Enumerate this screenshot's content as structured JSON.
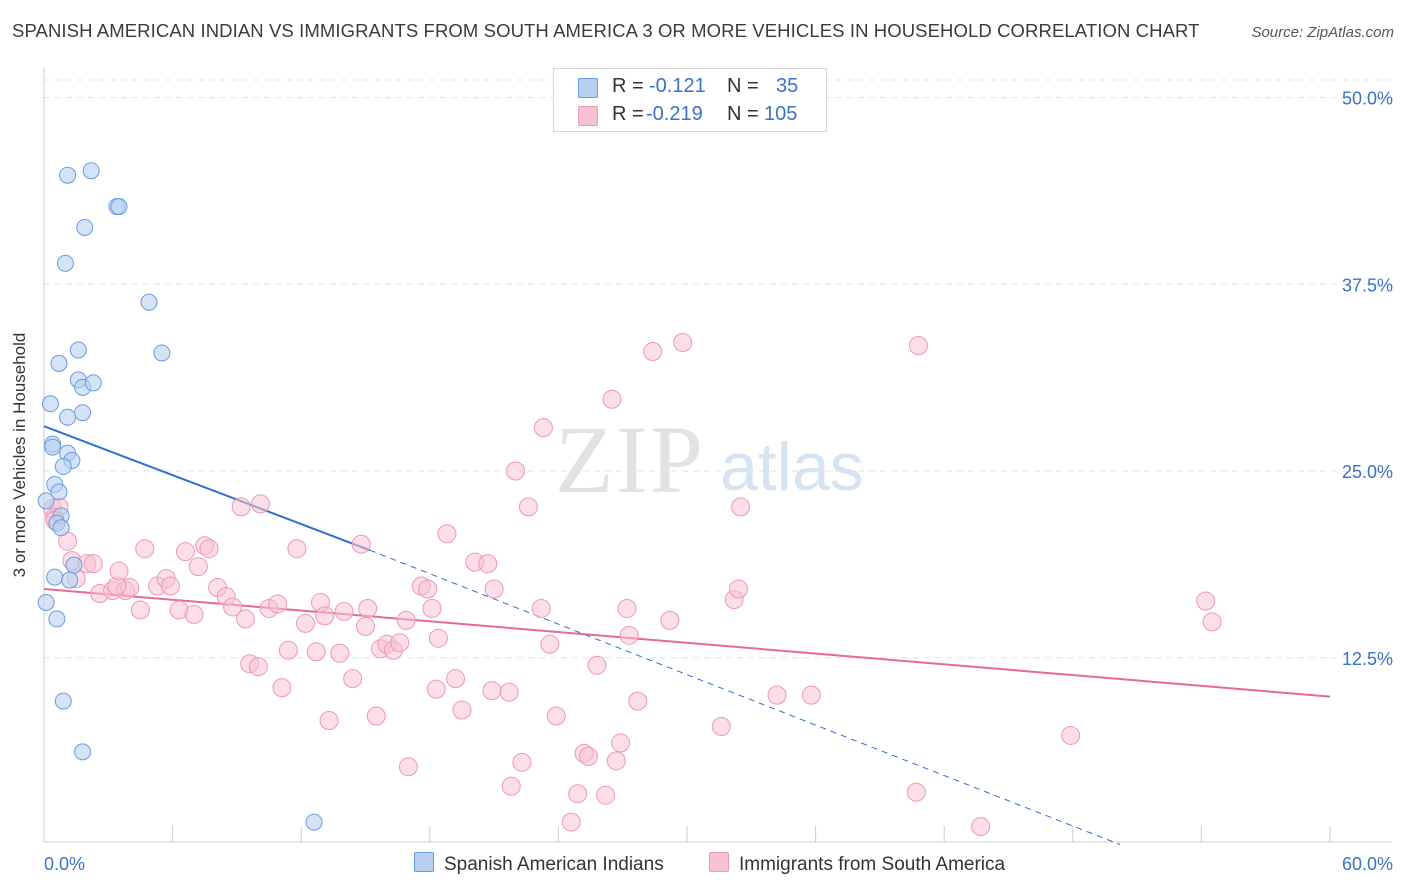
{
  "title": "SPANISH AMERICAN INDIAN VS IMMIGRANTS FROM SOUTH AMERICA 3 OR MORE VEHICLES IN HOUSEHOLD CORRELATION CHART",
  "source": "Source: ZipAtlas.com",
  "watermark": {
    "zip": "ZIP",
    "atlas": "atlas"
  },
  "legend_top": {
    "series1": {
      "r_label": "R =",
      "r_value": "-0.121",
      "n_label": "N =",
      "n_value": "35"
    },
    "series2": {
      "r_label": "R =",
      "r_value": "-0.219",
      "n_label": "N =",
      "n_value": "105"
    }
  },
  "legend_bottom": {
    "series1": "Spanish American Indians",
    "series2": "Immigrants from South America"
  },
  "colors": {
    "blue_fill": "#b8d0f0",
    "blue_stroke": "#6b9be0",
    "blue_line": "#2f6fce",
    "pink_fill": "#f7c3d3",
    "pink_stroke": "#ee98b4",
    "pink_line": "#e56a97",
    "axis_text": "#3a72c6",
    "grid": "#e3e3e3"
  },
  "chart_data": {
    "type": "scatter",
    "title": "SPANISH AMERICAN INDIAN VS IMMIGRANTS FROM SOUTH AMERICA 3 OR MORE VEHICLES IN HOUSEHOLD CORRELATION CHART",
    "xlabel": "",
    "ylabel": "3 or more Vehicles in Household",
    "xlim": [
      0,
      60
    ],
    "ylim": [
      0,
      50
    ],
    "x_tick_labels": [
      "0.0%",
      "60.0%"
    ],
    "y_ticks": [
      12.5,
      25.0,
      37.5,
      50.0
    ],
    "y_tick_labels": [
      "12.5%",
      "25.0%",
      "37.5%",
      "50.0%"
    ],
    "legend_position": "top-center",
    "series": [
      {
        "name": "Spanish American Indians",
        "r": -0.121,
        "n": 35,
        "points": [
          [
            1.1,
            44.8
          ],
          [
            2.2,
            45.1
          ],
          [
            3.4,
            42.7
          ],
          [
            3.5,
            42.7
          ],
          [
            1.9,
            41.3
          ],
          [
            1.0,
            38.9
          ],
          [
            4.9,
            36.3
          ],
          [
            5.5,
            32.9
          ],
          [
            1.6,
            33.1
          ],
          [
            0.7,
            32.2
          ],
          [
            1.6,
            31.1
          ],
          [
            1.8,
            30.6
          ],
          [
            2.3,
            30.9
          ],
          [
            0.3,
            29.5
          ],
          [
            1.1,
            28.6
          ],
          [
            1.8,
            28.9
          ],
          [
            0.4,
            26.8
          ],
          [
            0.4,
            26.6
          ],
          [
            1.1,
            26.2
          ],
          [
            1.3,
            25.7
          ],
          [
            0.9,
            25.3
          ],
          [
            0.5,
            24.1
          ],
          [
            0.7,
            23.6
          ],
          [
            0.1,
            23.0
          ],
          [
            0.8,
            22.0
          ],
          [
            0.6,
            21.5
          ],
          [
            0.8,
            21.2
          ],
          [
            1.4,
            18.7
          ],
          [
            0.5,
            17.9
          ],
          [
            1.2,
            17.7
          ],
          [
            0.1,
            16.2
          ],
          [
            0.6,
            15.1
          ],
          [
            0.9,
            9.6
          ],
          [
            1.8,
            6.2
          ],
          [
            12.6,
            1.5
          ]
        ],
        "trend": {
          "x1": 0,
          "y1": 28.0,
          "x2": 15.2,
          "y2": 19.7,
          "dashed_to_x": 50.2,
          "dashed_to_y": 0.0
        }
      },
      {
        "name": "Immigrants from South America",
        "r": -0.219,
        "n": 105,
        "points": [
          [
            0.4,
            22.5
          ],
          [
            0.7,
            22.6
          ],
          [
            0.5,
            21.9
          ],
          [
            0.5,
            21.7
          ],
          [
            1.1,
            20.3
          ],
          [
            1.3,
            19.0
          ],
          [
            2.0,
            18.8
          ],
          [
            1.5,
            17.8
          ],
          [
            2.3,
            18.8
          ],
          [
            2.6,
            16.8
          ],
          [
            3.2,
            17.0
          ],
          [
            3.8,
            17.0
          ],
          [
            4.0,
            17.2
          ],
          [
            3.4,
            17.3
          ],
          [
            4.5,
            15.7
          ],
          [
            4.7,
            19.8
          ],
          [
            3.5,
            18.3
          ],
          [
            5.3,
            17.3
          ],
          [
            5.7,
            17.8
          ],
          [
            5.9,
            17.3
          ],
          [
            6.3,
            15.7
          ],
          [
            6.6,
            19.6
          ],
          [
            7.0,
            15.4
          ],
          [
            7.5,
            20.0
          ],
          [
            7.2,
            18.6
          ],
          [
            7.7,
            19.8
          ],
          [
            8.1,
            17.2
          ],
          [
            8.5,
            16.6
          ],
          [
            8.8,
            15.9
          ],
          [
            9.2,
            22.6
          ],
          [
            9.4,
            15.1
          ],
          [
            9.6,
            12.1
          ],
          [
            10.0,
            11.9
          ],
          [
            10.1,
            22.8
          ],
          [
            10.5,
            15.8
          ],
          [
            10.9,
            16.1
          ],
          [
            11.1,
            10.5
          ],
          [
            11.4,
            13.0
          ],
          [
            11.8,
            19.8
          ],
          [
            12.2,
            14.8
          ],
          [
            12.7,
            12.9
          ],
          [
            12.9,
            16.2
          ],
          [
            13.1,
            15.3
          ],
          [
            13.3,
            8.3
          ],
          [
            13.8,
            12.8
          ],
          [
            14.0,
            15.6
          ],
          [
            14.4,
            11.1
          ],
          [
            14.8,
            20.1
          ],
          [
            15.0,
            14.6
          ],
          [
            15.1,
            15.8
          ],
          [
            15.5,
            8.6
          ],
          [
            15.7,
            13.1
          ],
          [
            16.0,
            13.4
          ],
          [
            16.3,
            13.0
          ],
          [
            16.6,
            13.5
          ],
          [
            16.9,
            15.0
          ],
          [
            17.0,
            5.2
          ],
          [
            17.6,
            17.3
          ],
          [
            17.9,
            17.1
          ],
          [
            18.1,
            15.8
          ],
          [
            18.3,
            10.4
          ],
          [
            18.4,
            13.8
          ],
          [
            18.8,
            20.8
          ],
          [
            19.2,
            11.1
          ],
          [
            19.5,
            9.0
          ],
          [
            20.1,
            18.9
          ],
          [
            20.7,
            18.8
          ],
          [
            20.9,
            10.3
          ],
          [
            21.0,
            17.1
          ],
          [
            21.7,
            10.2
          ],
          [
            21.8,
            3.9
          ],
          [
            22.0,
            25.0
          ],
          [
            22.3,
            5.5
          ],
          [
            22.6,
            22.6
          ],
          [
            23.2,
            15.8
          ],
          [
            23.3,
            27.9
          ],
          [
            23.6,
            13.4
          ],
          [
            23.9,
            8.6
          ],
          [
            24.6,
            1.5
          ],
          [
            24.9,
            3.4
          ],
          [
            25.2,
            6.1
          ],
          [
            25.4,
            5.9
          ],
          [
            25.8,
            12.0
          ],
          [
            26.2,
            3.3
          ],
          [
            26.9,
            6.8
          ],
          [
            26.5,
            29.8
          ],
          [
            26.7,
            5.6
          ],
          [
            27.2,
            15.8
          ],
          [
            27.3,
            14.0
          ],
          [
            27.7,
            9.6
          ],
          [
            28.4,
            33.0
          ],
          [
            29.2,
            15.0
          ],
          [
            29.8,
            33.6
          ],
          [
            31.6,
            7.9
          ],
          [
            32.2,
            16.4
          ],
          [
            32.4,
            17.1
          ],
          [
            32.5,
            22.6
          ],
          [
            34.2,
            10.0
          ],
          [
            35.8,
            10.0
          ],
          [
            40.8,
            33.4
          ],
          [
            40.7,
            3.5
          ],
          [
            43.7,
            1.2
          ],
          [
            47.9,
            7.3
          ],
          [
            54.2,
            16.3
          ],
          [
            54.5,
            14.9
          ]
        ],
        "trend": {
          "x1": 0,
          "y1": 17.1,
          "x2": 60,
          "y2": 9.9
        }
      }
    ]
  }
}
